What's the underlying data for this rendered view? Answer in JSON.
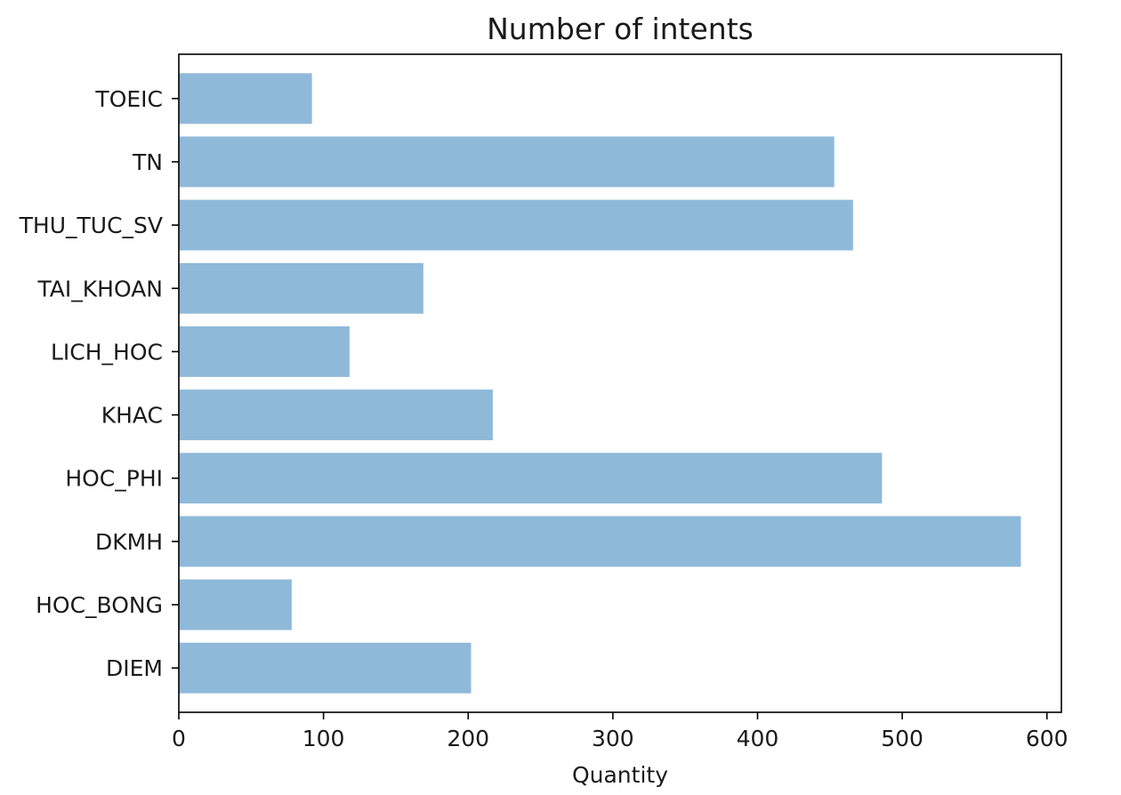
{
  "chart_data": {
    "type": "bar",
    "orientation": "horizontal",
    "title": "Number of intents",
    "xlabel": "Quantity",
    "ylabel": "",
    "categories": [
      "DIEM",
      "HOC_BONG",
      "DKMH",
      "HOC_PHI",
      "KHAC",
      "LICH_HOC",
      "TAI_KHOAN",
      "THU_TUC_SV",
      "TN",
      "TOEIC"
    ],
    "values": [
      202,
      78,
      582,
      486,
      217,
      118,
      169,
      466,
      453,
      92
    ],
    "xlim": [
      0,
      610
    ],
    "xticks": [
      0,
      100,
      200,
      300,
      400,
      500,
      600
    ],
    "grid": false,
    "bar_color": "#8fb9d9",
    "axis_color": "#000000"
  }
}
